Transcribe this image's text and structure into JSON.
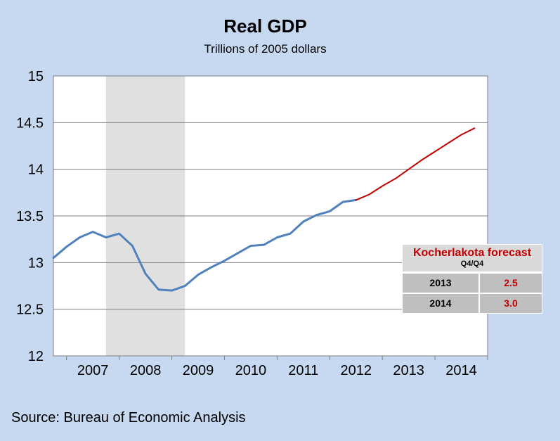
{
  "chart_data": {
    "type": "line",
    "title": "Real GDP",
    "subtitle": "Trillions of 2005 dollars",
    "ylim": [
      12,
      15
    ],
    "yticks": [
      "15",
      "14.5",
      "14",
      "13.5",
      "13",
      "12.5",
      "12"
    ],
    "xticks": [
      "2007",
      "2008",
      "2009",
      "2010",
      "2011",
      "2012",
      "2013",
      "2014"
    ],
    "grid": true,
    "shaded_region": {
      "from": "2007Q4",
      "to": "2009Q2"
    },
    "series": [
      {
        "color": "#4f81bd",
        "x": [
          "2006Q4",
          "2007Q1",
          "2007Q2",
          "2007Q3",
          "2007Q4",
          "2008Q1",
          "2008Q2",
          "2008Q3",
          "2008Q4",
          "2009Q1",
          "2009Q2",
          "2009Q3",
          "2009Q4",
          "2010Q1",
          "2010Q2",
          "2010Q3",
          "2010Q4",
          "2011Q1",
          "2011Q2",
          "2011Q3",
          "2011Q4",
          "2012Q1",
          "2012Q2",
          "2012Q3"
        ],
        "values": [
          13.05,
          13.17,
          13.27,
          13.33,
          13.27,
          13.31,
          13.18,
          12.88,
          12.71,
          12.7,
          12.75,
          12.87,
          12.95,
          13.02,
          13.1,
          13.18,
          13.19,
          13.27,
          13.31,
          13.44,
          13.51,
          13.55,
          13.65,
          13.67
        ]
      },
      {
        "color": "#c00000",
        "x": [
          "2012Q3",
          "2012Q4",
          "2013Q1",
          "2013Q2",
          "2013Q3",
          "2013Q4",
          "2014Q1",
          "2014Q2",
          "2014Q3",
          "2014Q4"
        ],
        "values": [
          13.67,
          13.73,
          13.82,
          13.9,
          14.0,
          14.1,
          14.19,
          14.28,
          14.37,
          14.44
        ]
      }
    ]
  },
  "forecast_table": {
    "title": "Kocherlakota forecast",
    "subtitle": "Q4/Q4",
    "rows": [
      {
        "year": "2013",
        "value": "2.5"
      },
      {
        "year": "2014",
        "value": "3.0"
      }
    ]
  },
  "source": "Source: Bureau of Economic Analysis"
}
